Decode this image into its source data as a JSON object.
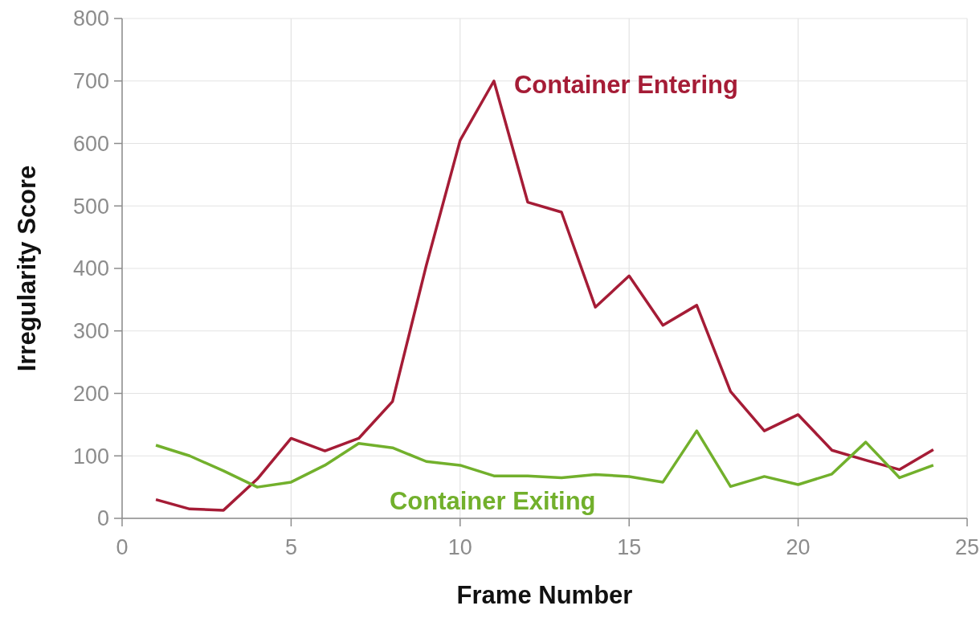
{
  "chart_data": {
    "type": "line",
    "xlabel": "Frame Number",
    "ylabel": "Irregularity Score",
    "x": [
      1,
      2,
      3,
      4,
      5,
      6,
      7,
      8,
      9,
      10,
      11,
      12,
      13,
      14,
      15,
      16,
      17,
      18,
      19,
      20,
      21,
      22,
      23,
      24
    ],
    "series": [
      {
        "name": "Container Entering",
        "color": "#a51c36",
        "values": [
          30,
          15,
          13,
          63,
          128,
          108,
          128,
          187,
          405,
          605,
          700,
          506,
          490,
          338,
          388,
          309,
          341,
          203,
          140,
          166,
          109,
          93,
          78,
          110
        ]
      },
      {
        "name": "Container Exiting",
        "color": "#72b02c",
        "values": [
          117,
          100,
          76,
          50,
          58,
          85,
          120,
          113,
          91,
          85,
          68,
          68,
          65,
          70,
          67,
          58,
          140,
          51,
          67,
          54,
          71,
          122,
          65,
          85
        ]
      }
    ],
    "xlim": [
      0,
      25
    ],
    "xticks": [
      0,
      5,
      10,
      15,
      20,
      25
    ],
    "ylim": [
      0,
      800
    ],
    "yticks": [
      0,
      100,
      200,
      300,
      400,
      500,
      600,
      700,
      800
    ],
    "grid": true,
    "marker": "none",
    "line_style": "solid"
  }
}
